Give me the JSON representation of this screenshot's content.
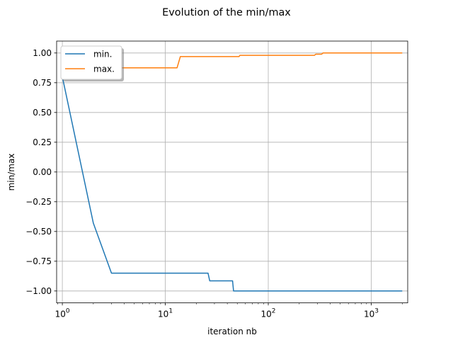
{
  "figure": {
    "title": "Evolution of the min/max"
  },
  "colors": {
    "min": "#1f77b4",
    "max": "#ff7f0e",
    "grid": "#b0b0b0",
    "axes": "#000000"
  },
  "chart_data": {
    "type": "line",
    "title": "Evolution of the min/max",
    "xlabel": "iteration nb",
    "ylabel": "min/max",
    "xscale": "log",
    "xlim": [
      0.88,
      2260
    ],
    "ylim": [
      -1.1,
      1.1
    ],
    "grid": true,
    "legend_position": "top-left",
    "xticks": [
      1,
      10,
      100,
      1000
    ],
    "xtick_labels": [
      {
        "base": "10",
        "exp": "0"
      },
      {
        "base": "10",
        "exp": "1"
      },
      {
        "base": "10",
        "exp": "2"
      },
      {
        "base": "10",
        "exp": "3"
      }
    ],
    "yticks": [
      1.0,
      0.75,
      0.5,
      0.25,
      0.0,
      -0.25,
      -0.5,
      -0.75,
      -1.0
    ],
    "ytick_labels": [
      "1.00",
      "0.75",
      "0.50",
      "0.25",
      "0.00",
      "−0.25",
      "−0.50",
      "−0.75",
      "−1.00"
    ],
    "series": [
      {
        "name": "min.",
        "key": "min",
        "points": [
          [
            1,
            0.8
          ],
          [
            2,
            -0.43
          ],
          [
            3,
            -0.85
          ],
          [
            26,
            -0.85
          ],
          [
            27,
            -0.915
          ],
          [
            45,
            -0.915
          ],
          [
            46,
            -1.0
          ],
          [
            600,
            -1.0
          ],
          [
            601,
            -1.0
          ],
          [
            2000,
            -1.0
          ]
        ]
      },
      {
        "name": "max.",
        "key": "max",
        "points": [
          [
            1,
            0.875
          ],
          [
            13,
            0.875
          ],
          [
            14,
            0.97
          ],
          [
            52,
            0.97
          ],
          [
            53,
            0.98
          ],
          [
            280,
            0.98
          ],
          [
            290,
            0.99
          ],
          [
            330,
            0.99
          ],
          [
            340,
            1.0
          ],
          [
            2000,
            1.0
          ]
        ]
      }
    ]
  }
}
